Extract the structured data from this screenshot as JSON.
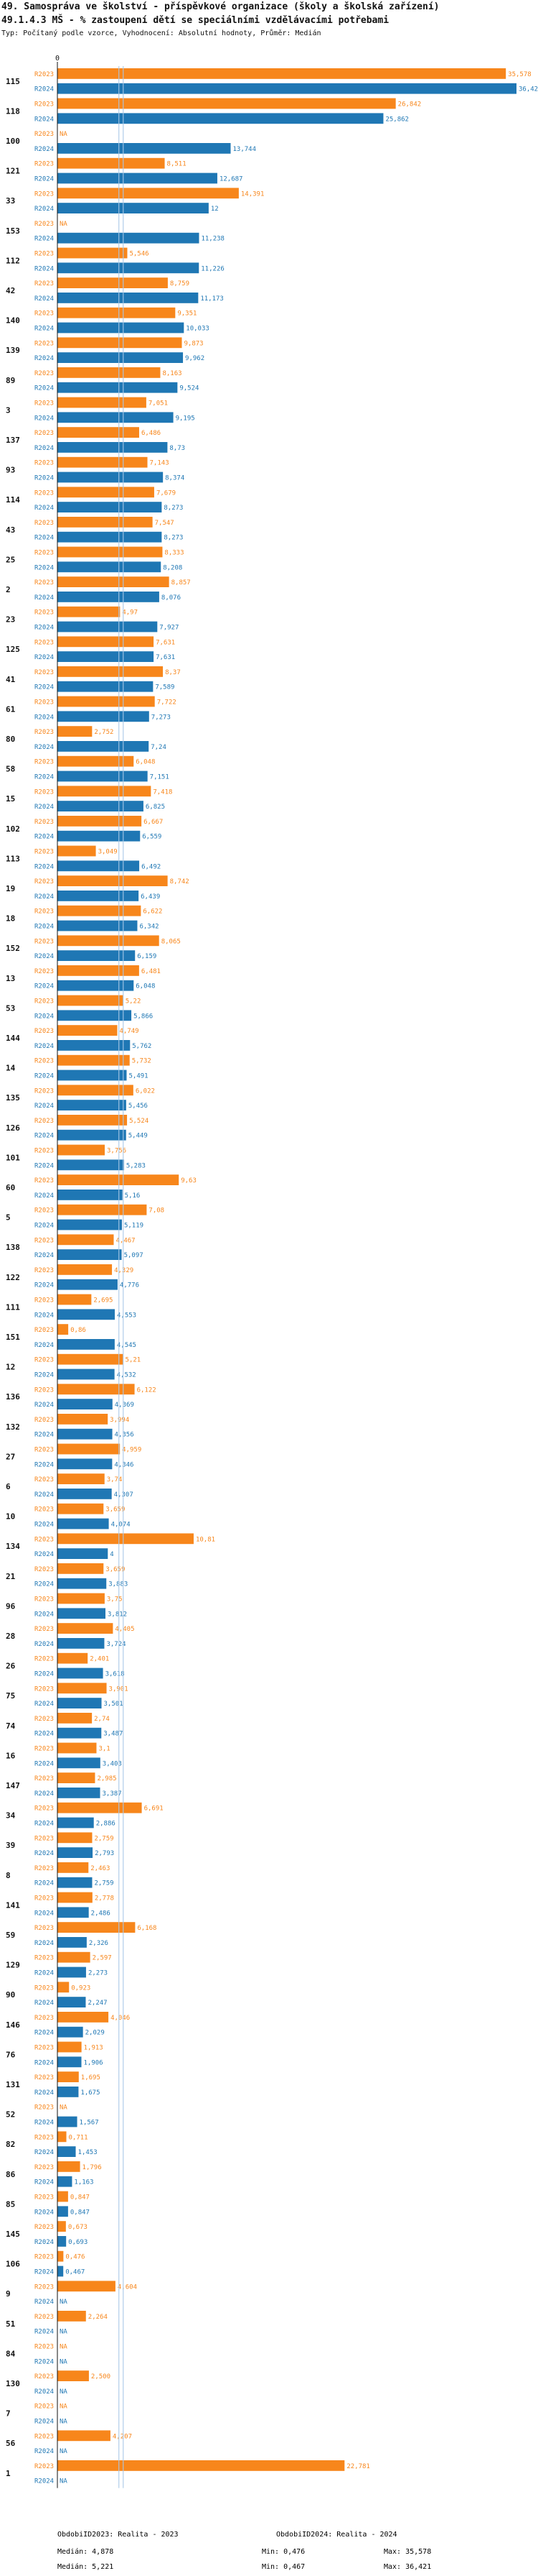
{
  "header": {
    "title": "49. Samospráva ve školství - příspěvkové organizace (školy a školská zařízení)",
    "subtitle": "49.1.4.3 MŠ - % zastoupení dětí se speciálními vzdělávacími potřebami",
    "note": "Typ: Počítaný podle vzorce, Vyhodnocení: Absolutní hodnoty, Průměr: Medián"
  },
  "colors": {
    "orange": "#f7861b",
    "blue": "#1f77b4",
    "median_line": "#a8c8e8"
  },
  "chart_data": {
    "type": "bar",
    "orientation": "horizontal",
    "series": [
      {
        "name": "ObdobiID2023: Realita - 2023",
        "row_label": "R2023",
        "color": "#f7861b",
        "stats": {
          "median": "Medián: 4,878",
          "min": "Min: 0,476",
          "max": "Max: 35,578"
        }
      },
      {
        "name": "ObdobiID2024: Realita - 2024",
        "row_label": "R2024",
        "color": "#1f77b4",
        "stats": {
          "median": "Medián: 5,221",
          "min": "Min: 0,467",
          "max": "Max: 36,421"
        }
      }
    ],
    "xlim": [
      0,
      36.421
    ],
    "tick_label": "0",
    "median_lines": [
      4.878,
      5.221
    ],
    "categories": [
      {
        "id": "115",
        "v": [
          35.578,
          36.421
        ],
        "l": [
          "35,578",
          "36,421"
        ]
      },
      {
        "id": "118",
        "v": [
          26.842,
          25.862
        ],
        "l": [
          "26,842",
          "25,862"
        ]
      },
      {
        "id": "100",
        "v": [
          null,
          13.744
        ],
        "l": [
          "NA",
          "13,744"
        ]
      },
      {
        "id": "121",
        "v": [
          8.511,
          12.687
        ],
        "l": [
          "8,511",
          "12,687"
        ]
      },
      {
        "id": "33",
        "v": [
          14.391,
          12
        ],
        "l": [
          "14,391",
          "12"
        ]
      },
      {
        "id": "153",
        "v": [
          null,
          11.238
        ],
        "l": [
          "NA",
          "11,238"
        ]
      },
      {
        "id": "112",
        "v": [
          5.546,
          11.226
        ],
        "l": [
          "5,546",
          "11,226"
        ]
      },
      {
        "id": "42",
        "v": [
          8.759,
          11.173
        ],
        "l": [
          "8,759",
          "11,173"
        ]
      },
      {
        "id": "140",
        "v": [
          9.351,
          10.033
        ],
        "l": [
          "9,351",
          "10,033"
        ]
      },
      {
        "id": "139",
        "v": [
          9.873,
          9.962
        ],
        "l": [
          "9,873",
          "9,962"
        ]
      },
      {
        "id": "89",
        "v": [
          8.163,
          9.524
        ],
        "l": [
          "8,163",
          "9,524"
        ]
      },
      {
        "id": "3",
        "v": [
          7.051,
          9.195
        ],
        "l": [
          "7,051",
          "9,195"
        ]
      },
      {
        "id": "137",
        "v": [
          6.486,
          8.73
        ],
        "l": [
          "6,486",
          "8,73"
        ]
      },
      {
        "id": "93",
        "v": [
          7.143,
          8.374
        ],
        "l": [
          "7,143",
          "8,374"
        ]
      },
      {
        "id": "114",
        "v": [
          7.679,
          8.273
        ],
        "l": [
          "7,679",
          "8,273"
        ]
      },
      {
        "id": "43",
        "v": [
          7.547,
          8.273
        ],
        "l": [
          "7,547",
          "8,273"
        ]
      },
      {
        "id": "25",
        "v": [
          8.333,
          8.208
        ],
        "l": [
          "8,333",
          "8,208"
        ]
      },
      {
        "id": "2",
        "v": [
          8.857,
          8.076
        ],
        "l": [
          "8,857",
          "8,076"
        ]
      },
      {
        "id": "23",
        "v": [
          4.97,
          7.927
        ],
        "l": [
          "4,97",
          "7,927"
        ]
      },
      {
        "id": "125",
        "v": [
          7.631,
          7.631
        ],
        "l": [
          "7,631",
          "7,631"
        ]
      },
      {
        "id": "41",
        "v": [
          8.37,
          7.589
        ],
        "l": [
          "8,37",
          "7,589"
        ]
      },
      {
        "id": "61",
        "v": [
          7.722,
          7.273
        ],
        "l": [
          "7,722",
          "7,273"
        ]
      },
      {
        "id": "80",
        "v": [
          2.752,
          7.24
        ],
        "l": [
          "2,752",
          "7,24"
        ]
      },
      {
        "id": "58",
        "v": [
          6.048,
          7.151
        ],
        "l": [
          "6,048",
          "7,151"
        ]
      },
      {
        "id": "15",
        "v": [
          7.418,
          6.825
        ],
        "l": [
          "7,418",
          "6,825"
        ]
      },
      {
        "id": "102",
        "v": [
          6.667,
          6.559
        ],
        "l": [
          "6,667",
          "6,559"
        ]
      },
      {
        "id": "113",
        "v": [
          3.049,
          6.492
        ],
        "l": [
          "3,049",
          "6,492"
        ]
      },
      {
        "id": "19",
        "v": [
          8.742,
          6.439
        ],
        "l": [
          "8,742",
          "6,439"
        ]
      },
      {
        "id": "18",
        "v": [
          6.622,
          6.342
        ],
        "l": [
          "6,622",
          "6,342"
        ]
      },
      {
        "id": "152",
        "v": [
          8.065,
          6.159
        ],
        "l": [
          "8,065",
          "6,159"
        ]
      },
      {
        "id": "13",
        "v": [
          6.481,
          6.048
        ],
        "l": [
          "6,481",
          "6,048"
        ]
      },
      {
        "id": "53",
        "v": [
          5.22,
          5.866
        ],
        "l": [
          "5,22",
          "5,866"
        ]
      },
      {
        "id": "144",
        "v": [
          4.749,
          5.762
        ],
        "l": [
          "4,749",
          "5,762"
        ]
      },
      {
        "id": "14",
        "v": [
          5.732,
          5.491
        ],
        "l": [
          "5,732",
          "5,491"
        ]
      },
      {
        "id": "135",
        "v": [
          6.022,
          5.456
        ],
        "l": [
          "6,022",
          "5,456"
        ]
      },
      {
        "id": "126",
        "v": [
          5.524,
          5.449
        ],
        "l": [
          "5,524",
          "5,449"
        ]
      },
      {
        "id": "101",
        "v": [
          3.756,
          5.283
        ],
        "l": [
          "3,756",
          "5,283"
        ]
      },
      {
        "id": "60",
        "v": [
          9.63,
          5.16
        ],
        "l": [
          "9,63",
          "5,16"
        ]
      },
      {
        "id": "5",
        "v": [
          7.08,
          5.119
        ],
        "l": [
          "7,08",
          "5,119"
        ]
      },
      {
        "id": "138",
        "v": [
          4.467,
          5.097
        ],
        "l": [
          "4,467",
          "5,097"
        ]
      },
      {
        "id": "122",
        "v": [
          4.329,
          4.776
        ],
        "l": [
          "4,329",
          "4,776"
        ]
      },
      {
        "id": "111",
        "v": [
          2.695,
          4.553
        ],
        "l": [
          "2,695",
          "4,553"
        ]
      },
      {
        "id": "151",
        "v": [
          0.86,
          4.545
        ],
        "l": [
          "0,86",
          "4,545"
        ]
      },
      {
        "id": "12",
        "v": [
          5.21,
          4.532
        ],
        "l": [
          "5,21",
          "4,532"
        ]
      },
      {
        "id": "136",
        "v": [
          6.122,
          4.369
        ],
        "l": [
          "6,122",
          "4,369"
        ]
      },
      {
        "id": "132",
        "v": [
          3.994,
          4.356
        ],
        "l": [
          "3,994",
          "4,356"
        ]
      },
      {
        "id": "27",
        "v": [
          4.959,
          4.346
        ],
        "l": [
          "4,959",
          "4,346"
        ]
      },
      {
        "id": "6",
        "v": [
          3.74,
          4.307
        ],
        "l": [
          "3,74",
          "4,307"
        ]
      },
      {
        "id": "10",
        "v": [
          3.659,
          4.074
        ],
        "l": [
          "3,659",
          "4,074"
        ]
      },
      {
        "id": "134",
        "v": [
          10.81,
          4
        ],
        "l": [
          "10,81",
          "4"
        ]
      },
      {
        "id": "21",
        "v": [
          3.659,
          3.883
        ],
        "l": [
          "3,659",
          "3,883"
        ]
      },
      {
        "id": "96",
        "v": [
          3.75,
          3.812
        ],
        "l": [
          "3,75",
          "3,812"
        ]
      },
      {
        "id": "28",
        "v": [
          4.405,
          3.724
        ],
        "l": [
          "4,405",
          "3,724"
        ]
      },
      {
        "id": "26",
        "v": [
          2.401,
          3.618
        ],
        "l": [
          "2,401",
          "3,618"
        ]
      },
      {
        "id": "75",
        "v": [
          3.901,
          3.501
        ],
        "l": [
          "3,901",
          "3,501"
        ]
      },
      {
        "id": "74",
        "v": [
          2.74,
          3.487
        ],
        "l": [
          "2,74",
          "3,487"
        ]
      },
      {
        "id": "16",
        "v": [
          3.1,
          3.403
        ],
        "l": [
          "3,1",
          "3,403"
        ]
      },
      {
        "id": "147",
        "v": [
          2.985,
          3.387
        ],
        "l": [
          "2,985",
          "3,387"
        ]
      },
      {
        "id": "34",
        "v": [
          6.691,
          2.886
        ],
        "l": [
          "6,691",
          "2,886"
        ]
      },
      {
        "id": "39",
        "v": [
          2.759,
          2.793
        ],
        "l": [
          "2,759",
          "2,793"
        ]
      },
      {
        "id": "8",
        "v": [
          2.463,
          2.759
        ],
        "l": [
          "2,463",
          "2,759"
        ]
      },
      {
        "id": "141",
        "v": [
          2.778,
          2.486
        ],
        "l": [
          "2,778",
          "2,486"
        ]
      },
      {
        "id": "59",
        "v": [
          6.168,
          2.326
        ],
        "l": [
          "6,168",
          "2,326"
        ]
      },
      {
        "id": "129",
        "v": [
          2.597,
          2.273
        ],
        "l": [
          "2,597",
          "2,273"
        ]
      },
      {
        "id": "90",
        "v": [
          0.923,
          2.247
        ],
        "l": [
          "0,923",
          "2,247"
        ]
      },
      {
        "id": "146",
        "v": [
          4.046,
          2.029
        ],
        "l": [
          "4,046",
          "2,029"
        ]
      },
      {
        "id": "76",
        "v": [
          1.913,
          1.906
        ],
        "l": [
          "1,913",
          "1,906"
        ]
      },
      {
        "id": "131",
        "v": [
          1.695,
          1.675
        ],
        "l": [
          "1,695",
          "1,675"
        ]
      },
      {
        "id": "52",
        "v": [
          null,
          1.567
        ],
        "l": [
          "NA",
          "1,567"
        ]
      },
      {
        "id": "82",
        "v": [
          0.711,
          1.453
        ],
        "l": [
          "0,711",
          "1,453"
        ]
      },
      {
        "id": "86",
        "v": [
          1.796,
          1.163
        ],
        "l": [
          "1,796",
          "1,163"
        ]
      },
      {
        "id": "85",
        "v": [
          0.847,
          0.847
        ],
        "l": [
          "0,847",
          "0,847"
        ]
      },
      {
        "id": "145",
        "v": [
          0.673,
          0.693
        ],
        "l": [
          "0,673",
          "0,693"
        ]
      },
      {
        "id": "106",
        "v": [
          0.476,
          0.467
        ],
        "l": [
          "0,476",
          "0,467"
        ]
      },
      {
        "id": "9",
        "v": [
          4.604,
          null
        ],
        "l": [
          "4,604",
          "NA"
        ]
      },
      {
        "id": "51",
        "v": [
          2.264,
          null
        ],
        "l": [
          "2,264",
          "NA"
        ]
      },
      {
        "id": "84",
        "v": [
          null,
          null
        ],
        "l": [
          "NA",
          "NA"
        ]
      },
      {
        "id": "130",
        "v": [
          2.5,
          null
        ],
        "l": [
          "2,500",
          "NA"
        ]
      },
      {
        "id": "7",
        "v": [
          null,
          null
        ],
        "l": [
          "NA",
          "NA"
        ]
      },
      {
        "id": "56",
        "v": [
          4.207,
          null
        ],
        "l": [
          "4,207",
          "NA"
        ]
      },
      {
        "id": "1",
        "v": [
          22.781,
          null
        ],
        "l": [
          "22,781",
          "NA"
        ]
      }
    ]
  }
}
